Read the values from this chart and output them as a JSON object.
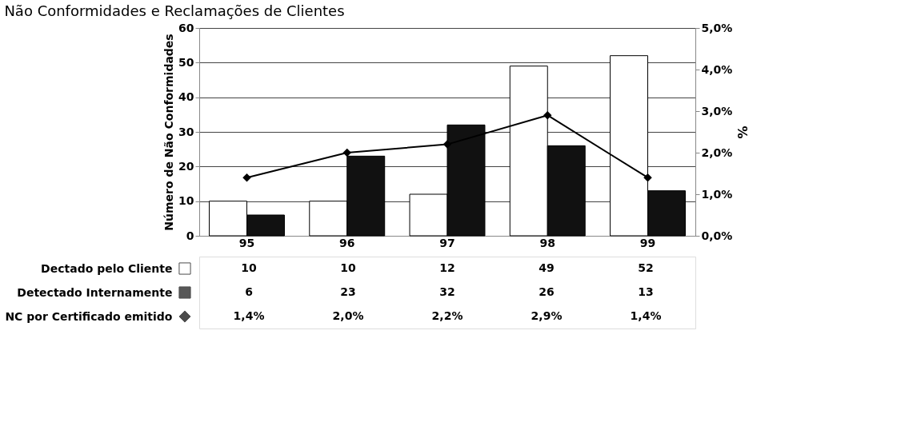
{
  "chart_data": {
    "type": "bar",
    "title": "Não Conformidades e Reclamações de Clientes",
    "ylabel": "Número de Não Conformidades",
    "y2label": "%",
    "categories": [
      "95",
      "96",
      "97",
      "98",
      "99"
    ],
    "series": [
      {
        "name": "Dectado pelo Cliente",
        "color": "#ffffff",
        "values": [
          10,
          10,
          12,
          49,
          52
        ],
        "value_labels": [
          "10",
          "10",
          "12",
          "49",
          "52"
        ]
      },
      {
        "name": "Detectado Internamente",
        "color": "#111111",
        "values": [
          6,
          23,
          32,
          26,
          13
        ],
        "value_labels": [
          "6",
          "23",
          "32",
          "26",
          "13"
        ]
      },
      {
        "name": "NC por Certificado emitido",
        "type": "line",
        "axis": "y2",
        "color": "#000000",
        "values": [
          1.4,
          2.0,
          2.2,
          2.9,
          1.4
        ],
        "value_labels": [
          "1,4%",
          "2,0%",
          "2,2%",
          "2,9%",
          "1,4%"
        ]
      }
    ],
    "ylim": [
      0,
      60
    ],
    "yticks": [
      0,
      10,
      20,
      30,
      40,
      50,
      60
    ],
    "y2lim": [
      0,
      5
    ],
    "y2ticks": [
      {
        "value": 0,
        "label": "0,0%"
      },
      {
        "value": 1,
        "label": "1,0%"
      },
      {
        "value": 2,
        "label": "2,0%"
      },
      {
        "value": 3,
        "label": "3,0%"
      },
      {
        "value": 4,
        "label": "4,0%"
      },
      {
        "value": 5,
        "label": "5,0%"
      }
    ],
    "grid": "y",
    "legend": "bottom",
    "marker": "diamond",
    "line_style": "solid"
  }
}
